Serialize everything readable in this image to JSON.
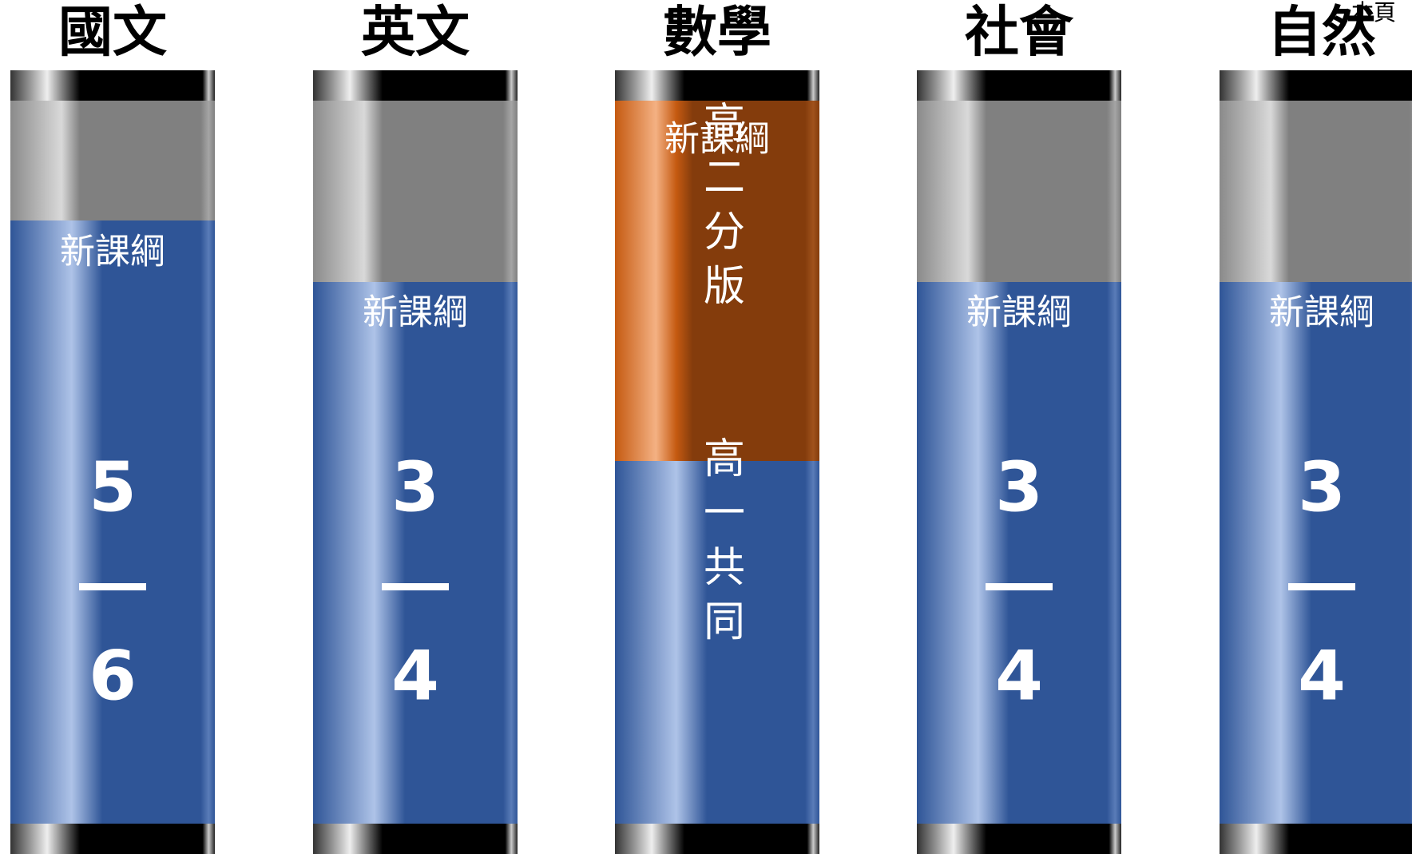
{
  "columns": [
    {
      "title": "國文",
      "label": "新課綱",
      "top": "5",
      "bottom": "6"
    },
    {
      "title": "英文",
      "label": "新課綱",
      "top": "3",
      "bottom": "4"
    },
    {
      "title": "數學",
      "label": "新課綱",
      "upper": "高二分版",
      "lower": "高一共同"
    },
    {
      "title": "社會",
      "label": "新課綱",
      "top": "3",
      "bottom": "4"
    },
    {
      "title": "自然",
      "label": "新課綱",
      "top": "3",
      "bottom": "4"
    }
  ],
  "corner_note": "本頁"
}
